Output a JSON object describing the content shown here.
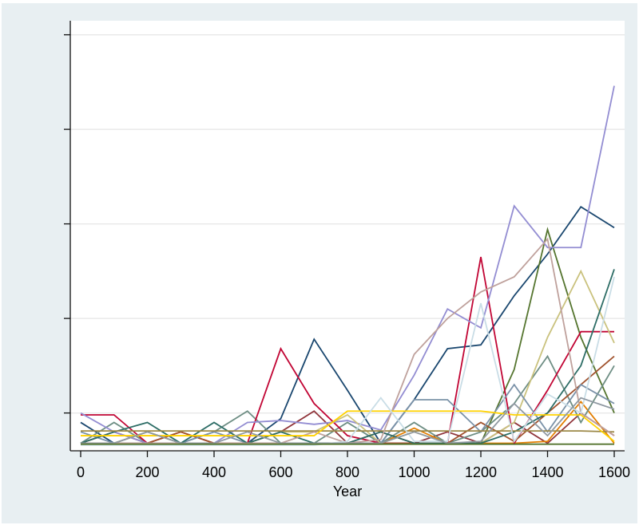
{
  "window": {
    "background_color": "#e8eff2",
    "plot_background_color": "#ffffff",
    "gridline_color": "#e6e6e6",
    "axis_color": "#111111"
  },
  "chart_data": {
    "type": "line",
    "title": "",
    "xlabel": "Year",
    "ylabel": "",
    "legend": "none",
    "grid": "horizontal",
    "xlim": [
      0,
      1631
    ],
    "ylim": [
      0,
      22.7
    ],
    "xticks": [
      0,
      200,
      400,
      600,
      800,
      1000,
      1200,
      1400,
      1600
    ],
    "yticks": [
      2,
      7,
      12,
      17,
      22
    ],
    "ytick_labels_visible": false,
    "x": [
      0,
      100,
      200,
      300,
      400,
      500,
      600,
      700,
      800,
      900,
      1000,
      1100,
      1200,
      1300,
      1400,
      1500,
      1600
    ],
    "series": [
      {
        "name": "navy",
        "color": "#1a476f",
        "values": [
          1.5,
          0.4,
          1.0,
          0.4,
          0.4,
          0.4,
          1.7,
          5.9,
          3.2,
          0.4,
          2.7,
          5.4,
          5.6,
          8.2,
          10.4,
          12.9,
          11.8
        ]
      },
      {
        "name": "maroon",
        "color": "#90353b",
        "values": [
          0.4,
          1.0,
          0.4,
          1.0,
          0.4,
          0.4,
          1.0,
          2.1,
          0.4,
          1.0,
          0.4,
          1.0,
          0.4,
          1.5,
          0.4,
          2.0,
          0.8
        ]
      },
      {
        "name": "forest",
        "color": "#55752f",
        "values": [
          0.4,
          0.4,
          0.4,
          0.4,
          0.4,
          0.4,
          0.4,
          0.4,
          0.4,
          0.4,
          0.4,
          0.4,
          0.4,
          4.3,
          11.7,
          6.0,
          2.0
        ]
      },
      {
        "name": "orange",
        "color": "#e37e00",
        "values": [
          0.4,
          0.4,
          0.4,
          0.4,
          0.4,
          0.4,
          0.4,
          0.4,
          0.4,
          0.4,
          1.2,
          0.4,
          0.4,
          0.4,
          0.5,
          2.6,
          0.4
        ]
      },
      {
        "name": "teal",
        "color": "#6e8e84",
        "values": [
          0.4,
          1.5,
          0.4,
          0.4,
          1.0,
          2.1,
          0.4,
          0.4,
          1.5,
          0.4,
          1.5,
          0.4,
          1.0,
          2.5,
          5.0,
          1.5,
          4.5
        ]
      },
      {
        "name": "cranberry",
        "color": "#c10534",
        "values": [
          1.9,
          1.9,
          0.4,
          0.4,
          0.4,
          0.4,
          5.4,
          2.5,
          0.8,
          0.4,
          0.4,
          0.4,
          10.25,
          0.4,
          3.2,
          6.3,
          6.3
        ]
      },
      {
        "name": "lavender",
        "color": "#938dd2",
        "values": [
          2.0,
          1.0,
          0.4,
          0.4,
          0.4,
          1.5,
          1.6,
          1.4,
          1.6,
          1.1,
          4.0,
          7.5,
          6.5,
          12.95,
          10.75,
          10.75,
          19.3
        ]
      },
      {
        "name": "khaki",
        "color": "#cac27e",
        "values": [
          0.4,
          0.4,
          1.0,
          0.4,
          0.4,
          0.4,
          1.0,
          1.0,
          1.9,
          0.4,
          1.0,
          0.4,
          0.4,
          1.5,
          6.0,
          9.5,
          5.7
        ]
      },
      {
        "name": "sienna",
        "color": "#a0522d",
        "values": [
          0.4,
          0.4,
          0.4,
          1.0,
          0.4,
          0.4,
          0.4,
          0.4,
          0.4,
          0.4,
          0.4,
          0.4,
          1.5,
          0.5,
          2.0,
          3.5,
          5.0
        ]
      },
      {
        "name": "emidblue",
        "color": "#7b92a8",
        "values": [
          1.0,
          0.4,
          0.4,
          0.4,
          1.0,
          0.4,
          0.4,
          0.4,
          0.4,
          0.4,
          2.7,
          2.7,
          1.0,
          3.5,
          1.0,
          3.5,
          2.5
        ]
      },
      {
        "name": "emerald",
        "color": "#2d6d66",
        "values": [
          0.4,
          1.0,
          1.5,
          0.4,
          1.5,
          0.4,
          1.0,
          0.4,
          0.4,
          1.0,
          0.4,
          0.4,
          0.4,
          1.0,
          2.0,
          4.5,
          9.6
        ]
      },
      {
        "name": "brown",
        "color": "#9c8847",
        "values": [
          1.05,
          1.05,
          1.05,
          1.05,
          1.05,
          1.05,
          1.05,
          1.05,
          1.05,
          1.05,
          1.05,
          1.05,
          1.05,
          1.05,
          1.05,
          1.05,
          1.0
        ]
      },
      {
        "name": "erose",
        "color": "#bfa19c",
        "values": [
          0.4,
          0.4,
          0.4,
          0.4,
          0.4,
          0.4,
          0.4,
          1.0,
          0.4,
          0.6,
          5.1,
          7.0,
          8.4,
          9.2,
          11.2,
          2.0,
          0.8
        ]
      },
      {
        "name": "gold",
        "color": "#ffd200",
        "values": [
          0.8,
          0.8,
          0.8,
          0.8,
          0.8,
          0.8,
          0.8,
          0.8,
          2.1,
          2.1,
          2.1,
          2.1,
          2.1,
          1.9,
          1.9,
          1.9,
          0.5
        ]
      },
      {
        "name": "bluishgray",
        "color": "#c9dde6",
        "values": [
          0.3,
          0.3,
          0.3,
          0.3,
          0.3,
          0.3,
          0.3,
          0.3,
          0.5,
          2.8,
          0.5,
          0.5,
          7.8,
          0.5,
          3.0,
          2.0,
          9.2
        ]
      },
      {
        "name": "gray",
        "color": "#9099a2",
        "values": [
          0.4,
          0.4,
          1.0,
          0.4,
          0.4,
          1.0,
          0.4,
          0.4,
          0.4,
          0.4,
          1.0,
          0.4,
          0.5,
          2.5,
          0.8,
          2.8,
          2.2
        ]
      },
      {
        "name": "forest-flat",
        "color": "#55752f",
        "values": [
          0.35,
          0.35,
          0.35,
          0.35,
          0.35,
          0.35,
          0.35,
          0.35,
          0.35,
          0.35,
          0.35,
          0.35,
          0.35,
          0.35,
          0.35,
          0.35,
          0.35
        ]
      }
    ]
  }
}
